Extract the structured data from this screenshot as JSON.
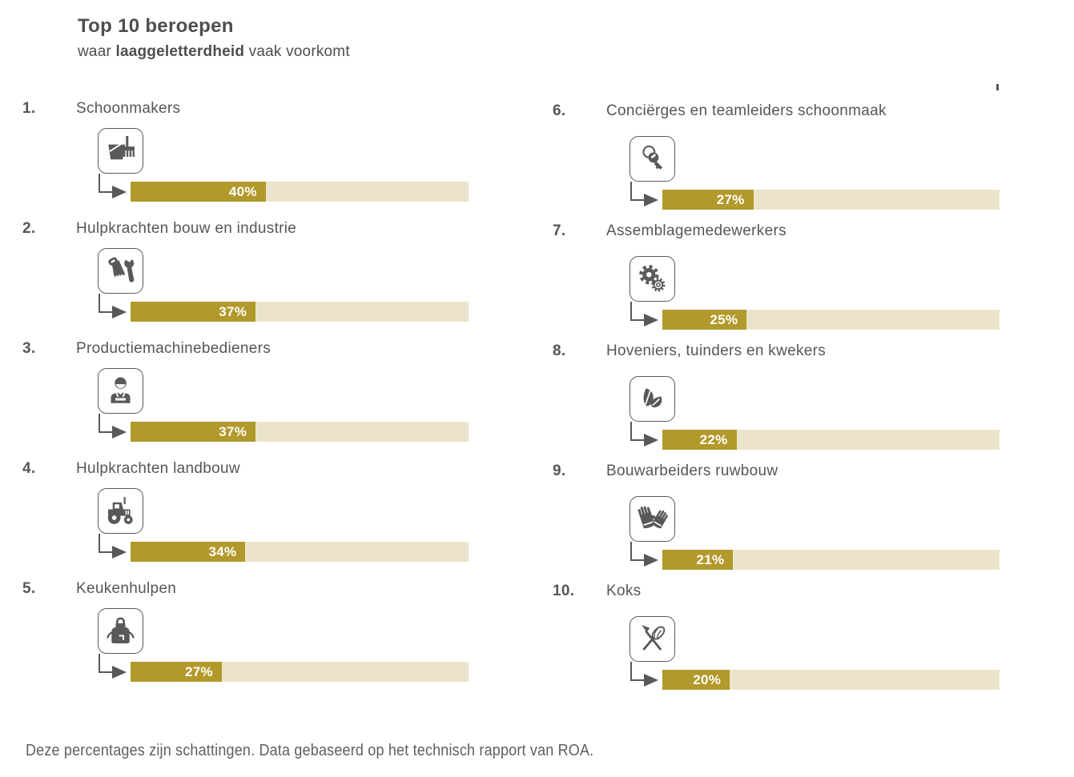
{
  "header": {
    "title": "Top 10 beroepen",
    "subtitle_prefix": "waar ",
    "subtitle_bold": "laaggeletterdheid",
    "subtitle_suffix": " vaak voorkomt"
  },
  "items": [
    {
      "rank": "1.",
      "label": "Schoonmakers",
      "percent": 40,
      "percent_label": "40%",
      "icon": "cleaning-bucket-brush-icon"
    },
    {
      "rank": "2.",
      "label": "Hulpkrachten bouw en industrie",
      "percent": 37,
      "percent_label": "37%",
      "icon": "saw-wrench-icon"
    },
    {
      "rank": "3.",
      "label": "Productiemachinebedieners",
      "percent": 37,
      "percent_label": "37%",
      "icon": "machine-operator-icon"
    },
    {
      "rank": "4.",
      "label": "Hulpkrachten landbouw",
      "percent": 34,
      "percent_label": "34%",
      "icon": "tractor-icon"
    },
    {
      "rank": "5.",
      "label": "Keukenhulpen",
      "percent": 27,
      "percent_label": "27%",
      "icon": "apron-icon"
    },
    {
      "rank": "6.",
      "label": "Conciërges en teamleiders schoonmaak",
      "percent": 27,
      "percent_label": "27%",
      "icon": "keys-icon"
    },
    {
      "rank": "7.",
      "label": "Assemblagemedewerkers",
      "percent": 25,
      "percent_label": "25%",
      "icon": "gears-icon"
    },
    {
      "rank": "8.",
      "label": "Hoveniers, tuinders en kwekers",
      "percent": 22,
      "percent_label": "22%",
      "icon": "leaves-icon"
    },
    {
      "rank": "9.",
      "label": "Bouwarbeiders ruwbouw",
      "percent": 21,
      "percent_label": "21%",
      "icon": "work-gloves-icon"
    },
    {
      "rank": "10.",
      "label": "Koks",
      "percent": 20,
      "percent_label": "20%",
      "icon": "fork-whisk-icon"
    }
  ],
  "footer": {
    "note": "Deze percentages zijn schattingen. Data gebaseerd op het technisch rapport van ROA."
  },
  "colors": {
    "bar_fill_gold": "#b2992b",
    "bar_track_beige": "#ece4ca",
    "text_gray": "#54565a",
    "icon_gray": "#58595b"
  },
  "chart_data": {
    "type": "bar",
    "title": "Top 10 beroepen waar laaggeletterdheid vaak voorkomt",
    "categories": [
      "Schoonmakers",
      "Hulpkrachten bouw en industrie",
      "Productiemachinebedieners",
      "Hulpkrachten landbouw",
      "Keukenhulpen",
      "Conciërges en teamleiders schoonmaak",
      "Assemblagemedewerkers",
      "Hoveniers, tuinders en kwekers",
      "Bouwarbeiders ruwbouw",
      "Koks"
    ],
    "values": [
      40,
      37,
      37,
      34,
      27,
      27,
      25,
      22,
      21,
      20
    ],
    "unit": "%",
    "xlim": [
      0,
      100
    ],
    "orientation": "horizontal",
    "layout": "two-column, ranks 1-5 left, 6-10 right",
    "note": "Deze percentages zijn schattingen. Data gebaseerd op het technisch rapport van ROA."
  }
}
